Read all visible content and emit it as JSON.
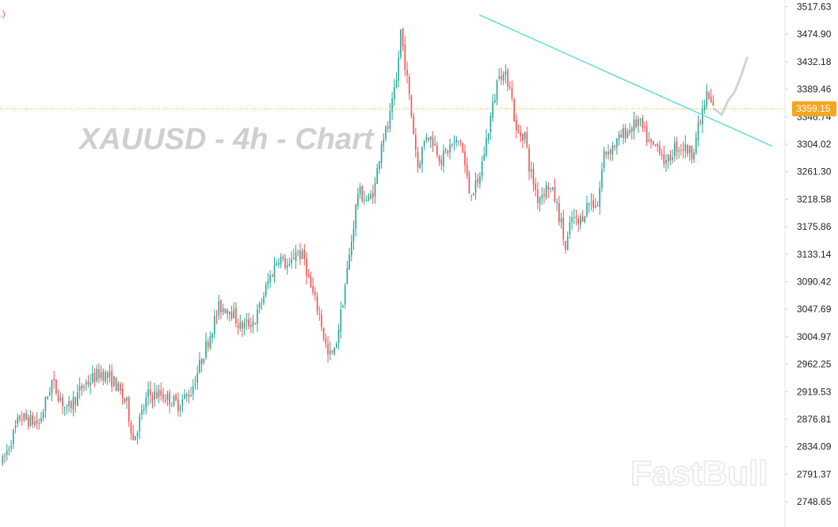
{
  "watermark": "XAUUSD - 4h - Chart",
  "brand": "FastBull",
  "corner_mark": ".)",
  "current_price": "3359.15",
  "colors": {
    "up": "#26a69a",
    "down": "#ef5350",
    "trendline": "#61e0cc",
    "price_line": "#f5a623",
    "price_tag": "#f5a623",
    "axis_border": "#e6e6e6",
    "projection": "#c8c8c8"
  },
  "chart_data": {
    "type": "candlestick",
    "symbol": "XAUUSD",
    "timeframe": "4h",
    "ylim": [
      2727,
      3527
    ],
    "y_ticks": [
      "3517.63",
      "3474.90",
      "3432.18",
      "3389.46",
      "3346.74",
      "3304.02",
      "3261.30",
      "3218.58",
      "3175.86",
      "3133.14",
      "3090.42",
      "3047.69",
      "3004.97",
      "2962.25",
      "2919.53",
      "2876.81",
      "2834.09",
      "2791.37",
      "2748.65"
    ],
    "grid": false,
    "current_price": 3359.15,
    "trendline": {
      "start": {
        "bar": 0.62,
        "price": 3505
      },
      "end": {
        "bar": 1.0,
        "price": 3301
      }
    },
    "anchors": [
      [
        0,
        2810
      ],
      [
        8,
        2880
      ],
      [
        17,
        2870
      ],
      [
        23,
        2935
      ],
      [
        30,
        2890
      ],
      [
        38,
        2930
      ],
      [
        46,
        2950
      ],
      [
        52,
        2935
      ],
      [
        58,
        2900
      ],
      [
        61,
        2845
      ],
      [
        68,
        2915
      ],
      [
        74,
        2915
      ],
      [
        82,
        2900
      ],
      [
        88,
        2920
      ],
      [
        92,
        2960
      ],
      [
        101,
        3050
      ],
      [
        106,
        3050
      ],
      [
        111,
        3020
      ],
      [
        118,
        3030
      ],
      [
        124,
        3090
      ],
      [
        129,
        3130
      ],
      [
        134,
        3110
      ],
      [
        137,
        3140
      ],
      [
        141,
        3125
      ],
      [
        144,
        3080
      ],
      [
        148,
        3040
      ],
      [
        152,
        2975
      ],
      [
        155,
        2980
      ],
      [
        158,
        3040
      ],
      [
        162,
        3130
      ],
      [
        166,
        3230
      ],
      [
        171,
        3215
      ],
      [
        174,
        3240
      ],
      [
        177,
        3310
      ],
      [
        180,
        3330
      ],
      [
        184,
        3400
      ],
      [
        186,
        3480
      ],
      [
        188,
        3430
      ],
      [
        191,
        3350
      ],
      [
        194,
        3270
      ],
      [
        198,
        3320
      ],
      [
        201,
        3310
      ],
      [
        205,
        3280
      ],
      [
        209,
        3300
      ],
      [
        214,
        3310
      ],
      [
        218,
        3230
      ],
      [
        222,
        3240
      ],
      [
        226,
        3310
      ],
      [
        230,
        3380
      ],
      [
        232,
        3420
      ],
      [
        234,
        3410
      ],
      [
        237,
        3400
      ],
      [
        240,
        3320
      ],
      [
        244,
        3320
      ],
      [
        246,
        3270
      ],
      [
        250,
        3220
      ],
      [
        255,
        3240
      ],
      [
        258,
        3220
      ],
      [
        261,
        3180
      ],
      [
        263,
        3140
      ],
      [
        266,
        3190
      ],
      [
        269,
        3180
      ],
      [
        274,
        3215
      ],
      [
        278,
        3210
      ],
      [
        281,
        3290
      ],
      [
        285,
        3300
      ],
      [
        288,
        3310
      ],
      [
        290,
        3320
      ],
      [
        294,
        3330
      ],
      [
        297,
        3340
      ],
      [
        300,
        3320
      ],
      [
        303,
        3300
      ],
      [
        307,
        3300
      ],
      [
        310,
        3270
      ],
      [
        314,
        3300
      ],
      [
        318,
        3300
      ],
      [
        322,
        3290
      ],
      [
        326,
        3340
      ],
      [
        329,
        3380
      ],
      [
        332,
        3360
      ]
    ],
    "projection": [
      [
        332,
        3360
      ],
      [
        336,
        3350
      ],
      [
        339,
        3372
      ],
      [
        342,
        3385
      ],
      [
        345,
        3410
      ],
      [
        348,
        3440
      ]
    ]
  }
}
